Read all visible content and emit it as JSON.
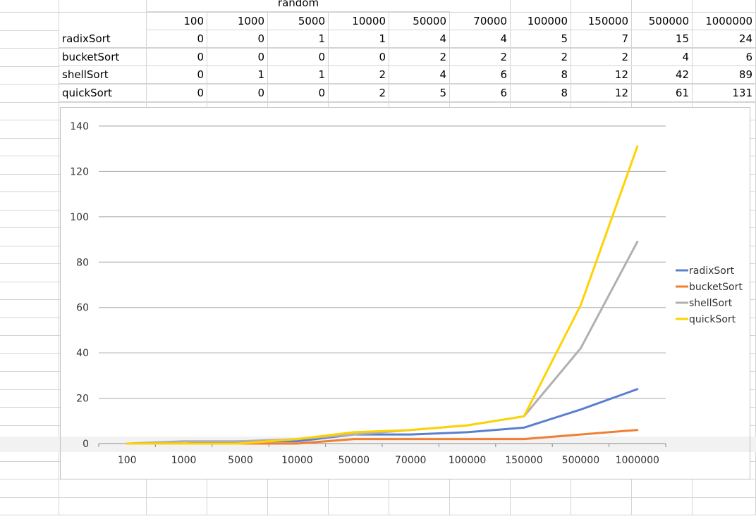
{
  "sheet": {
    "group_header": "random",
    "col_headers": [
      "100",
      "1000",
      "5000",
      "10000",
      "50000",
      "70000",
      "100000",
      "150000",
      "500000",
      "1000000"
    ],
    "rows": [
      {
        "label": "radixSort",
        "values": [
          "0",
          "0",
          "1",
          "1",
          "4",
          "4",
          "5",
          "7",
          "15",
          "24"
        ]
      },
      {
        "label": "bucketSort",
        "values": [
          "0",
          "0",
          "0",
          "0",
          "2",
          "2",
          "2",
          "2",
          "4",
          "6"
        ]
      },
      {
        "label": "shellSort",
        "values": [
          "0",
          "1",
          "1",
          "2",
          "4",
          "6",
          "8",
          "12",
          "42",
          "89"
        ]
      },
      {
        "label": "quickSort",
        "values": [
          "0",
          "0",
          "0",
          "2",
          "5",
          "6",
          "8",
          "12",
          "61",
          "131"
        ]
      }
    ]
  },
  "chart_data": {
    "type": "line",
    "categories": [
      "100",
      "1000",
      "5000",
      "10000",
      "50000",
      "70000",
      "100000",
      "150000",
      "500000",
      "1000000"
    ],
    "series": [
      {
        "name": "radixSort",
        "values": [
          0,
          0,
          1,
          1,
          4,
          4,
          5,
          7,
          15,
          24
        ],
        "color": "#5b7fd0"
      },
      {
        "name": "bucketSort",
        "values": [
          0,
          0,
          0,
          0,
          2,
          2,
          2,
          2,
          4,
          6
        ],
        "color": "#f07f32"
      },
      {
        "name": "shellSort",
        "values": [
          0,
          1,
          1,
          2,
          4,
          6,
          8,
          12,
          42,
          89
        ],
        "color": "#b0b0b0"
      },
      {
        "name": "quickSort",
        "values": [
          0,
          0,
          0,
          2,
          5,
          6,
          8,
          12,
          61,
          131
        ],
        "color": "#ffd200"
      }
    ],
    "title": "",
    "xlabel": "",
    "ylabel": "",
    "ylim": [
      0,
      140
    ],
    "yticks": [
      0,
      20,
      40,
      60,
      80,
      100,
      120,
      140
    ],
    "grid": true,
    "legend": "right"
  }
}
